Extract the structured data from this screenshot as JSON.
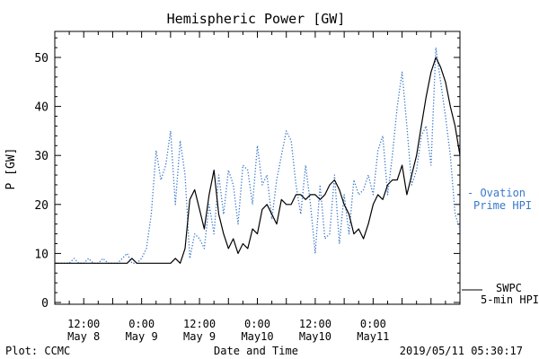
{
  "chart_data": {
    "type": "line",
    "title": "Hemispheric Power [GW]",
    "ylabel": "P [GW]",
    "xlabel": "Date and Time",
    "ylim": [
      0,
      55
    ],
    "xlim_hours": [
      0,
      84
    ],
    "yticks": [
      0,
      10,
      20,
      30,
      40,
      50
    ],
    "xticks": [
      {
        "t": 6,
        "time": "12:00",
        "date": "May 8"
      },
      {
        "t": 18,
        "time": "0:00",
        "date": "May 9"
      },
      {
        "t": 30,
        "time": "12:00",
        "date": "May 9"
      },
      {
        "t": 42,
        "time": "0:00",
        "date": "May10"
      },
      {
        "t": 54,
        "time": "12:00",
        "date": "May10"
      },
      {
        "t": 66,
        "time": "0:00",
        "date": "May11"
      }
    ],
    "series": [
      {
        "name": "Ovation Prime HPI",
        "legend_lines": [
          "- Ovation",
          "Prime HPI"
        ],
        "color": "#3a78c9",
        "style": "dotted",
        "x": [
          0,
          3,
          4,
          5,
          6,
          7,
          8,
          9,
          10,
          11,
          12,
          13,
          14,
          15,
          16,
          17,
          18,
          19,
          20,
          21,
          22,
          23,
          24,
          25,
          26,
          27,
          28,
          29,
          30,
          31,
          32,
          33,
          34,
          35,
          36,
          37,
          38,
          39,
          40,
          41,
          42,
          43,
          44,
          45,
          46,
          47,
          48,
          49,
          50,
          51,
          52,
          53,
          54,
          55,
          56,
          57,
          58,
          59,
          60,
          61,
          62,
          63,
          64,
          65,
          66,
          67,
          68,
          69,
          70,
          71,
          72,
          73,
          74,
          75,
          76,
          77,
          78,
          79,
          80,
          81,
          82,
          83,
          84
        ],
        "values": [
          8,
          8,
          9,
          8,
          8,
          9,
          8,
          8,
          9,
          8,
          8,
          8,
          9,
          10,
          8,
          8,
          9,
          11,
          18,
          31,
          25,
          28,
          35,
          20,
          33,
          26,
          9,
          14,
          13,
          11,
          20,
          14,
          26,
          18,
          27,
          24,
          16,
          28,
          27,
          20,
          32,
          24,
          26,
          17,
          25,
          30,
          35,
          33,
          24,
          18,
          28,
          20,
          10,
          24,
          13,
          14,
          26,
          12,
          22,
          14,
          25,
          22,
          23,
          26,
          22,
          31,
          34,
          22,
          30,
          40,
          47,
          36,
          24,
          27,
          34,
          36,
          28,
          52,
          45,
          38,
          30,
          18,
          15
        ]
      },
      {
        "name": "SWPC 5-min HPI",
        "legend_lines": [
          "SWPC",
          "5-min HPI"
        ],
        "color": "#000000",
        "style": "solid",
        "x": [
          0,
          15,
          16,
          17,
          18,
          19,
          20,
          21,
          22,
          23,
          24,
          25,
          26,
          27,
          28,
          29,
          30,
          31,
          32,
          33,
          34,
          35,
          36,
          37,
          38,
          39,
          40,
          41,
          42,
          43,
          44,
          45,
          46,
          47,
          48,
          49,
          50,
          51,
          52,
          53,
          54,
          55,
          56,
          57,
          58,
          59,
          60,
          61,
          62,
          63,
          64,
          65,
          66,
          67,
          68,
          69,
          70,
          71,
          72,
          73,
          74,
          75,
          76,
          77,
          78,
          79,
          80,
          81,
          82,
          83,
          84
        ],
        "values": [
          8,
          8,
          9,
          8,
          8,
          8,
          8,
          8,
          8,
          8,
          8,
          9,
          8,
          11,
          21,
          23,
          19,
          15,
          22,
          27,
          18,
          14,
          11,
          13,
          10,
          12,
          11,
          15,
          14,
          19,
          20,
          18,
          16,
          21,
          20,
          20,
          22,
          22,
          21,
          22,
          22,
          21,
          22,
          24,
          25,
          23,
          20,
          18,
          14,
          15,
          13,
          16,
          20,
          22,
          21,
          24,
          25,
          25,
          28,
          22,
          26,
          30,
          36,
          42,
          47,
          50,
          48,
          45,
          40,
          36,
          30
        ]
      }
    ],
    "footer": {
      "plot_label": "Plot: CCMC",
      "timestamp": "2019/05/11 05:30:17"
    }
  }
}
